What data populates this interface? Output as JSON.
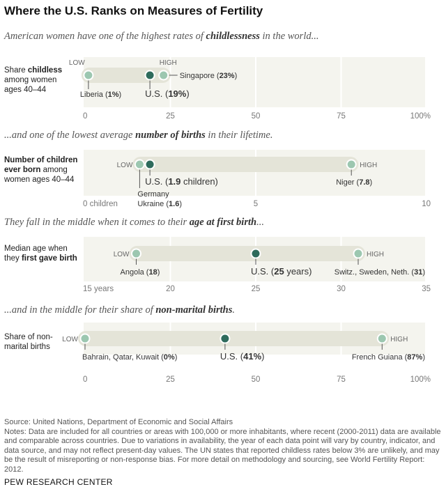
{
  "title": "Where the U.S. Ranks on Measures of Fertility",
  "subtitles": [
    {
      "pre": "American women have one of the highest rates of ",
      "bold": "childlessness",
      "post": " in the world..."
    },
    {
      "pre": "...and one of the lowest average ",
      "bold": "number of births",
      "post": " in their lifetime."
    },
    {
      "pre": "They fall in the middle when it comes to their ",
      "bold": "age at first birth",
      "post": "..."
    },
    {
      "pre": "...and in the middle for their share of ",
      "bold": "non-marital births",
      "post": "."
    }
  ],
  "row_labels": [
    {
      "pre": "Share ",
      "bold": "childless",
      "post": " among women ages 40–44"
    },
    {
      "pre": "",
      "bold": "Number of children ever born",
      "post": " among women ages 40–44"
    },
    {
      "pre": "Median age when they ",
      "bold": "first gave birth",
      "post": ""
    },
    {
      "pre": "Share of non-marital births",
      "bold": "",
      "post": ""
    }
  ],
  "colors": {
    "low_high": "#9cc7b0",
    "us": "#2e6b5c",
    "panel_bg": "#f4f4ee",
    "band": "#e4e4d8"
  },
  "chart_data": [
    {
      "type": "dot-range",
      "xlim": [
        0,
        100
      ],
      "ticks": [
        "0",
        "25",
        "50",
        "75",
        "100%"
      ],
      "tick_values": [
        0,
        25,
        50,
        75,
        100
      ],
      "low_label": "LOW",
      "high_label": "HIGH",
      "low": {
        "value": 1,
        "pre": "Liberia (",
        "bold": "1%",
        "post": ")"
      },
      "us": {
        "value": 19,
        "pre": "U.S. (",
        "bold": "19%",
        "post": ")"
      },
      "high": {
        "value": 23,
        "pre": "Singapore (",
        "bold": "23%",
        "post": ")"
      }
    },
    {
      "type": "dot-range",
      "xlim": [
        0,
        10
      ],
      "ticks": [
        "0 children",
        "5",
        "10"
      ],
      "tick_values": [
        0,
        5,
        10
      ],
      "low_label": "LOW",
      "high_label": "HIGH",
      "low": {
        "value": 1.6,
        "line1": "Germany",
        "pre": "Ukraine (",
        "bold": "1.6",
        "post": ")"
      },
      "us": {
        "value": 1.9,
        "pre": "U.S. (",
        "bold": "1.9",
        "post": " children)"
      },
      "high": {
        "value": 7.8,
        "pre": "Niger (",
        "bold": "7.8",
        "post": ")"
      }
    },
    {
      "type": "dot-range",
      "xlim": [
        15,
        35
      ],
      "ticks": [
        "15 years",
        "20",
        "25",
        "30",
        "35"
      ],
      "tick_values": [
        15,
        20,
        25,
        30,
        35
      ],
      "low_label": "LOW",
      "high_label": "HIGH",
      "low": {
        "value": 18,
        "pre": "Angola (",
        "bold": "18",
        "post": ")"
      },
      "us": {
        "value": 25,
        "pre": "U.S. (",
        "bold": "25",
        "post": " years)"
      },
      "high": {
        "value": 31,
        "pre": "Switz., Sweden, Neth. (",
        "bold": "31",
        "post": ")"
      }
    },
    {
      "type": "dot-range",
      "xlim": [
        0,
        100
      ],
      "ticks": [
        "0",
        "25",
        "50",
        "75",
        "100%"
      ],
      "tick_values": [
        0,
        25,
        50,
        75,
        100
      ],
      "low_label": "LOW",
      "high_label": "HIGH",
      "low": {
        "value": 0,
        "pre": "Bahrain, Qatar, Kuwait (",
        "bold": "0%",
        "post": ")"
      },
      "us": {
        "value": 41,
        "pre": "U.S. (",
        "bold": "41%",
        "post": ")"
      },
      "high": {
        "value": 87,
        "pre": "French Guiana (",
        "bold": "87%",
        "post": ")"
      }
    }
  ],
  "source": "Source: United Nations, Department of Economic and Social Affairs",
  "notes": "Notes: Data are included for all countries or areas with 100,000 or more inhabitants, where recent (2000-2011) data are available and comparable across countries. Due to variations in availability, the year of each data point will vary by country, indicator, and data source, and may not reflect present-day values. The UN states that reported childless rates below 3% are unlikely, and may be the result of misreporting or non-response bias. For more detail on methodology and sourcing, see World Fertility Report: 2012.",
  "brand": "PEW RESEARCH CENTER"
}
